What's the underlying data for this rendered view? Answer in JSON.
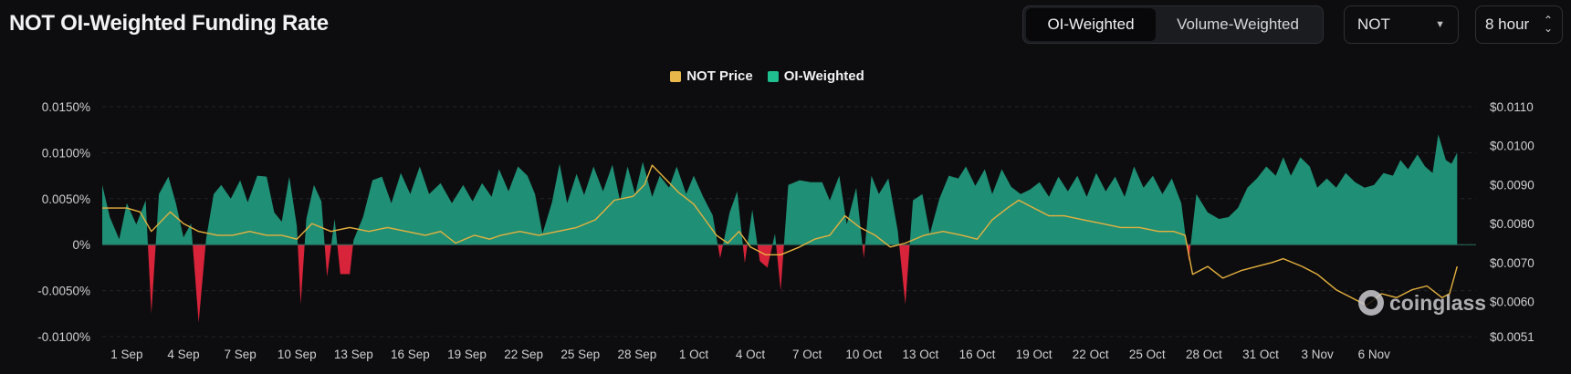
{
  "title": "NOT OI-Weighted Funding Rate",
  "toggle": {
    "options": [
      "OI-Weighted",
      "Volume-Weighted"
    ],
    "active": "OI-Weighted"
  },
  "coin_select": {
    "value": "NOT"
  },
  "interval_select": {
    "value": "8 hour"
  },
  "legend": [
    {
      "label": "NOT Price",
      "color": "#e8b84a"
    },
    {
      "label": "OI-Weighted",
      "color": "#1fbf8f"
    }
  ],
  "watermark": "coinglass",
  "colors": {
    "positive": "#1f8f75",
    "negative": "#d8243a",
    "price": "#e6b13e",
    "background": "#0d0d0f"
  },
  "chart_data": {
    "type": "area",
    "x_ticks": [
      "1 Sep",
      "4 Sep",
      "7 Sep",
      "10 Sep",
      "13 Sep",
      "16 Sep",
      "19 Sep",
      "22 Sep",
      "25 Sep",
      "28 Sep",
      "1 Oct",
      "4 Oct",
      "7 Oct",
      "10 Oct",
      "13 Oct",
      "16 Oct",
      "19 Oct",
      "22 Oct",
      "25 Oct",
      "28 Oct",
      "31 Oct",
      "3 Nov",
      "6 Nov"
    ],
    "y_left_ticks": [
      "0.0150%",
      "0.0100%",
      "0.0050%",
      "0%",
      "-0.0050%",
      "-0.0100%"
    ],
    "y_left_range": [
      -0.01,
      0.015
    ],
    "y_right_ticks": [
      "$0.0110",
      "$0.0100",
      "$0.0090",
      "$0.0080",
      "$0.0070",
      "$0.0060",
      "$0.0051"
    ],
    "y_right_range": [
      0.0051,
      0.011
    ],
    "x_range_days": [
      0,
      70
    ],
    "series": [
      {
        "name": "OI-Weighted",
        "axis": "left",
        "points": [
          [
            -1.3,
            0.0065
          ],
          [
            -0.9,
            0.003
          ],
          [
            -0.4,
            0.0006
          ],
          [
            0,
            0.0045
          ],
          [
            0.5,
            0.0022
          ],
          [
            1.0,
            0.0048
          ],
          [
            1.3,
            -0.0075
          ],
          [
            1.7,
            0.0055
          ],
          [
            2.2,
            0.0074
          ],
          [
            2.6,
            0.0045
          ],
          [
            3.0,
            0.0008
          ],
          [
            3.4,
            0.0023
          ],
          [
            3.8,
            -0.0085
          ],
          [
            4.2,
            0.0007
          ],
          [
            4.6,
            0.0055
          ],
          [
            5.0,
            0.0065
          ],
          [
            5.5,
            0.005
          ],
          [
            6.0,
            0.007
          ],
          [
            6.4,
            0.0046
          ],
          [
            6.9,
            0.0075
          ],
          [
            7.4,
            0.0074
          ],
          [
            7.8,
            0.0035
          ],
          [
            8.2,
            0.0025
          ],
          [
            8.6,
            0.0074
          ],
          [
            9.0,
            0.002
          ],
          [
            9.2,
            -0.0065
          ],
          [
            9.5,
            0.0028
          ],
          [
            9.9,
            0.0065
          ],
          [
            10.3,
            0.0047
          ],
          [
            10.6,
            -0.0035
          ],
          [
            11.0,
            0.0028
          ],
          [
            11.3,
            -0.0032
          ],
          [
            11.8,
            -0.0032
          ],
          [
            12.0,
            0.0005
          ],
          [
            12.5,
            0.003
          ],
          [
            13.0,
            0.007
          ],
          [
            13.5,
            0.0074
          ],
          [
            14.0,
            0.0045
          ],
          [
            14.5,
            0.0078
          ],
          [
            15.0,
            0.0055
          ],
          [
            15.5,
            0.0085
          ],
          [
            16.0,
            0.0055
          ],
          [
            16.6,
            0.0067
          ],
          [
            17.2,
            0.0045
          ],
          [
            17.8,
            0.0065
          ],
          [
            18.3,
            0.0047
          ],
          [
            18.8,
            0.0067
          ],
          [
            19.3,
            0.0052
          ],
          [
            19.7,
            0.0082
          ],
          [
            20.2,
            0.0058
          ],
          [
            20.7,
            0.0085
          ],
          [
            21.2,
            0.0075
          ],
          [
            21.6,
            0.0055
          ],
          [
            22.0,
            0.0012
          ],
          [
            22.5,
            0.0046
          ],
          [
            22.9,
            0.0088
          ],
          [
            23.3,
            0.0045
          ],
          [
            23.8,
            0.0077
          ],
          [
            24.2,
            0.0054
          ],
          [
            24.7,
            0.0085
          ],
          [
            25.2,
            0.0058
          ],
          [
            25.7,
            0.0087
          ],
          [
            26.1,
            0.0048
          ],
          [
            26.5,
            0.0085
          ],
          [
            26.9,
            0.0055
          ],
          [
            27.3,
            0.009
          ],
          [
            27.8,
            0.0052
          ],
          [
            28.2,
            0.0075
          ],
          [
            28.7,
            0.0062
          ],
          [
            29.1,
            0.0085
          ],
          [
            29.6,
            0.0055
          ],
          [
            30.0,
            0.0075
          ],
          [
            30.5,
            0.0052
          ],
          [
            31.0,
            0.0032
          ],
          [
            31.4,
            -0.0015
          ],
          [
            31.9,
            0.0035
          ],
          [
            32.3,
            0.0058
          ],
          [
            32.7,
            -0.002
          ],
          [
            33.1,
            0.0038
          ],
          [
            33.5,
            -0.0018
          ],
          [
            33.9,
            -0.0025
          ],
          [
            34.3,
            0.0012
          ],
          [
            34.6,
            -0.005
          ],
          [
            35.0,
            0.0065
          ],
          [
            35.6,
            0.007
          ],
          [
            36.2,
            0.0068
          ],
          [
            36.8,
            0.0068
          ],
          [
            37.2,
            0.0048
          ],
          [
            37.7,
            0.0075
          ],
          [
            38.1,
            0.0022
          ],
          [
            38.6,
            0.0062
          ],
          [
            39.0,
            -0.0015
          ],
          [
            39.4,
            0.0075
          ],
          [
            39.8,
            0.0055
          ],
          [
            40.3,
            0.0072
          ],
          [
            40.8,
            0.0015
          ],
          [
            41.2,
            -0.0065
          ],
          [
            41.6,
            0.0048
          ],
          [
            42.1,
            0.0055
          ],
          [
            42.5,
            0.0012
          ],
          [
            43.0,
            0.005
          ],
          [
            43.5,
            0.0075
          ],
          [
            44.0,
            0.0072
          ],
          [
            44.4,
            0.0085
          ],
          [
            44.9,
            0.0064
          ],
          [
            45.4,
            0.0082
          ],
          [
            45.8,
            0.0055
          ],
          [
            46.3,
            0.0082
          ],
          [
            46.8,
            0.0063
          ],
          [
            47.3,
            0.0055
          ],
          [
            47.8,
            0.006
          ],
          [
            48.3,
            0.0068
          ],
          [
            48.8,
            0.0052
          ],
          [
            49.3,
            0.0074
          ],
          [
            49.8,
            0.0058
          ],
          [
            50.3,
            0.0075
          ],
          [
            50.8,
            0.0052
          ],
          [
            51.3,
            0.0078
          ],
          [
            51.8,
            0.0058
          ],
          [
            52.3,
            0.0074
          ],
          [
            52.8,
            0.0052
          ],
          [
            53.3,
            0.0085
          ],
          [
            53.8,
            0.0062
          ],
          [
            54.3,
            0.0075
          ],
          [
            54.8,
            0.0055
          ],
          [
            55.3,
            0.0072
          ],
          [
            55.8,
            0.0045
          ],
          [
            56.2,
            -0.0018
          ],
          [
            56.6,
            0.0055
          ],
          [
            57.2,
            0.0035
          ],
          [
            57.8,
            0.0028
          ],
          [
            58.3,
            0.003
          ],
          [
            58.8,
            0.004
          ],
          [
            59.3,
            0.0062
          ],
          [
            59.8,
            0.0072
          ],
          [
            60.3,
            0.0085
          ],
          [
            60.8,
            0.0075
          ],
          [
            61.2,
            0.0095
          ],
          [
            61.6,
            0.0075
          ],
          [
            62.1,
            0.0095
          ],
          [
            62.6,
            0.0085
          ],
          [
            63.0,
            0.0062
          ],
          [
            63.5,
            0.0072
          ],
          [
            64.0,
            0.0062
          ],
          [
            64.5,
            0.0078
          ],
          [
            65.0,
            0.0068
          ],
          [
            65.5,
            0.0062
          ],
          [
            66.0,
            0.0065
          ],
          [
            66.5,
            0.0078
          ],
          [
            67.0,
            0.0075
          ],
          [
            67.4,
            0.0092
          ],
          [
            67.8,
            0.0082
          ],
          [
            68.3,
            0.0098
          ],
          [
            68.7,
            0.0085
          ],
          [
            69.1,
            0.0078
          ],
          [
            69.4,
            0.012
          ],
          [
            69.8,
            0.0092
          ],
          [
            70.1,
            0.0088
          ],
          [
            70.4,
            0.01
          ]
        ]
      },
      {
        "name": "NOT Price",
        "axis": "right",
        "points": [
          [
            -1.3,
            0.0084
          ],
          [
            0,
            0.0084
          ],
          [
            0.7,
            0.0083
          ],
          [
            1.3,
            0.0078
          ],
          [
            2.3,
            0.0083
          ],
          [
            3.0,
            0.008
          ],
          [
            3.8,
            0.0078
          ],
          [
            4.8,
            0.0077
          ],
          [
            5.6,
            0.0077
          ],
          [
            6.5,
            0.0078
          ],
          [
            7.4,
            0.0077
          ],
          [
            8.2,
            0.0077
          ],
          [
            9.0,
            0.0076
          ],
          [
            9.8,
            0.008
          ],
          [
            10.8,
            0.0078
          ],
          [
            11.8,
            0.0079
          ],
          [
            12.8,
            0.0078
          ],
          [
            13.8,
            0.0079
          ],
          [
            14.8,
            0.0078
          ],
          [
            15.8,
            0.0077
          ],
          [
            16.6,
            0.0078
          ],
          [
            17.4,
            0.0075
          ],
          [
            18.4,
            0.0077
          ],
          [
            19.2,
            0.0076
          ],
          [
            19.8,
            0.0077
          ],
          [
            20.8,
            0.0078
          ],
          [
            21.8,
            0.0077
          ],
          [
            22.8,
            0.0078
          ],
          [
            23.8,
            0.0079
          ],
          [
            24.8,
            0.0081
          ],
          [
            25.8,
            0.0086
          ],
          [
            26.8,
            0.0087
          ],
          [
            27.4,
            0.009
          ],
          [
            27.8,
            0.0095
          ],
          [
            28.4,
            0.0092
          ],
          [
            29.2,
            0.0088
          ],
          [
            30.0,
            0.0085
          ],
          [
            30.6,
            0.0081
          ],
          [
            31.2,
            0.0077
          ],
          [
            31.8,
            0.0075
          ],
          [
            32.4,
            0.0078
          ],
          [
            33.0,
            0.0074
          ],
          [
            33.8,
            0.0072
          ],
          [
            34.6,
            0.0072
          ],
          [
            35.6,
            0.0074
          ],
          [
            36.4,
            0.0076
          ],
          [
            37.2,
            0.0077
          ],
          [
            38.0,
            0.0082
          ],
          [
            38.8,
            0.0079
          ],
          [
            39.6,
            0.0077
          ],
          [
            40.4,
            0.0074
          ],
          [
            41.2,
            0.0075
          ],
          [
            42.2,
            0.0077
          ],
          [
            43.2,
            0.0078
          ],
          [
            44.2,
            0.0077
          ],
          [
            45.0,
            0.0076
          ],
          [
            45.8,
            0.0081
          ],
          [
            46.6,
            0.0084
          ],
          [
            47.2,
            0.0086
          ],
          [
            48.0,
            0.0084
          ],
          [
            48.8,
            0.0082
          ],
          [
            49.6,
            0.0082
          ],
          [
            50.6,
            0.0081
          ],
          [
            51.6,
            0.008
          ],
          [
            52.6,
            0.0079
          ],
          [
            53.6,
            0.0079
          ],
          [
            54.6,
            0.0078
          ],
          [
            55.4,
            0.0078
          ],
          [
            56.0,
            0.0077
          ],
          [
            56.4,
            0.0067
          ],
          [
            57.2,
            0.0069
          ],
          [
            58.0,
            0.0066
          ],
          [
            59.0,
            0.0068
          ],
          [
            59.8,
            0.0069
          ],
          [
            60.6,
            0.007
          ],
          [
            61.2,
            0.0071
          ],
          [
            62.2,
            0.0069
          ],
          [
            63.0,
            0.0067
          ],
          [
            64.0,
            0.0063
          ],
          [
            64.8,
            0.0061
          ],
          [
            65.6,
            0.0059
          ],
          [
            66.4,
            0.0062
          ],
          [
            67.2,
            0.0061
          ],
          [
            68.0,
            0.0063
          ],
          [
            68.8,
            0.0064
          ],
          [
            69.6,
            0.0061
          ],
          [
            70.0,
            0.0062
          ],
          [
            70.4,
            0.0069
          ]
        ]
      }
    ],
    "grid": true
  }
}
